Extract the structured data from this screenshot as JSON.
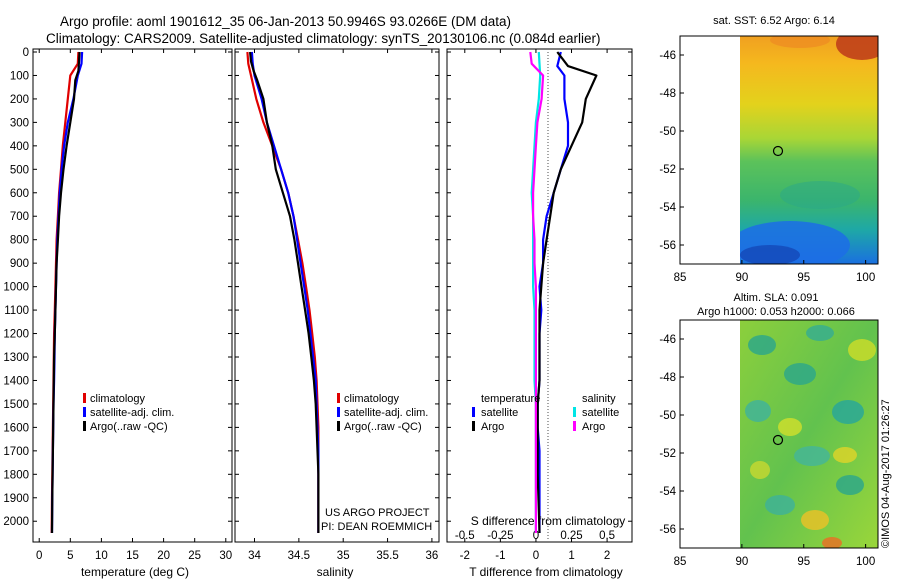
{
  "title": {
    "line1": "Argo profile: aoml 1901612_35 06-Jan-2013 50.9946S 93.0266E (DM data)",
    "line2": "Climatology: CARS2009. Satellite-adjusted climatology: synTS_20130106.nc (0.084d earlier)"
  },
  "colors": {
    "climatology": "#e00000",
    "satellite": "#0000ff",
    "argo": "#000000",
    "satellite_s": "#00e5e5",
    "argo_s": "#ff00ff"
  },
  "chart_data": [
    {
      "type": "line",
      "panel": "temperature",
      "xlabel": "temperature (deg C)",
      "ylabel": "",
      "xlim": [
        -1,
        31
      ],
      "ylim": [
        2080,
        0
      ],
      "xticks": [
        0,
        5,
        10,
        15,
        20,
        25,
        30
      ],
      "yticks": [
        0,
        100,
        200,
        300,
        400,
        500,
        600,
        700,
        800,
        900,
        1000,
        1100,
        1200,
        1300,
        1400,
        1500,
        1600,
        1700,
        1800,
        1900,
        2000
      ],
      "legend": [
        "climatology",
        "satellite-adj. clim.",
        "Argo(..raw -QC)"
      ],
      "legend_position": "lower-center",
      "series": [
        {
          "name": "climatology",
          "color_key": "climatology",
          "x": [
            6.3,
            6.2,
            5.0,
            4.6,
            4.2,
            3.8,
            3.5,
            3.2,
            3.0,
            2.8,
            2.7,
            2.6,
            2.5,
            2.4,
            2.35,
            2.3,
            2.25,
            2.2,
            2.15,
            2.1,
            2.05,
            2.0
          ],
          "y": [
            0,
            50,
            100,
            200,
            300,
            400,
            500,
            600,
            700,
            800,
            900,
            1000,
            1100,
            1200,
            1300,
            1400,
            1500,
            1600,
            1700,
            1800,
            1900,
            2050
          ]
        },
        {
          "name": "satellite-adj. clim.",
          "color_key": "satellite",
          "x": [
            6.9,
            6.8,
            6.2,
            5.5,
            4.6,
            4.0,
            3.6,
            3.3,
            3.1,
            2.9,
            2.8,
            2.7,
            2.6,
            2.5,
            2.45,
            2.4,
            2.3,
            2.25,
            2.2,
            2.15,
            2.1,
            2.05
          ],
          "y": [
            0,
            50,
            100,
            200,
            300,
            400,
            500,
            600,
            700,
            800,
            900,
            1000,
            1100,
            1200,
            1300,
            1400,
            1500,
            1600,
            1700,
            1800,
            1900,
            2050
          ]
        },
        {
          "name": "Argo(..raw -QC)",
          "color_key": "argo",
          "x": [
            6.5,
            6.4,
            6.3,
            5.8,
            5.6,
            5.0,
            4.4,
            3.9,
            3.5,
            3.2,
            3.0,
            2.8,
            2.7,
            2.6,
            2.5,
            2.4,
            2.35,
            2.3,
            2.25,
            2.2,
            2.15,
            2.1,
            2.05
          ],
          "y": [
            0,
            40,
            80,
            120,
            200,
            300,
            400,
            500,
            600,
            700,
            800,
            900,
            1000,
            1100,
            1200,
            1300,
            1400,
            1500,
            1600,
            1700,
            1800,
            1900,
            2050
          ]
        }
      ]
    },
    {
      "type": "line",
      "panel": "salinity",
      "xlabel": "salinity",
      "ylabel": "",
      "xlim": [
        33.78,
        36.08
      ],
      "ylim": [
        2080,
        0
      ],
      "xticks": [
        34,
        34.5,
        35,
        35.5,
        36
      ],
      "legend": [
        "climatology",
        "satellite-adj. clim.",
        "Argo(..raw -QC)"
      ],
      "legend_position": "lower-right",
      "annotation": [
        "US ARGO PROJECT",
        "PI: DEAN ROEMMICH"
      ],
      "series": [
        {
          "name": "climatology",
          "color_key": "climatology",
          "x": [
            33.92,
            33.93,
            33.96,
            34.02,
            34.1,
            34.2,
            34.3,
            34.38,
            34.44,
            34.49,
            34.54,
            34.58,
            34.62,
            34.65,
            34.68,
            34.7,
            34.71,
            34.72,
            34.72,
            34.72,
            34.72,
            34.72
          ],
          "y": [
            0,
            50,
            100,
            200,
            300,
            400,
            500,
            600,
            700,
            800,
            900,
            1000,
            1100,
            1200,
            1300,
            1400,
            1500,
            1600,
            1700,
            1800,
            1900,
            2050
          ]
        },
        {
          "name": "satellite-adj. clim.",
          "color_key": "satellite",
          "x": [
            33.97,
            33.98,
            34.0,
            34.08,
            34.14,
            34.22,
            34.3,
            34.38,
            34.44,
            34.48,
            34.52,
            34.56,
            34.6,
            34.63,
            34.66,
            34.69,
            34.7,
            34.71,
            34.72,
            34.72,
            34.72,
            34.72
          ],
          "y": [
            0,
            50,
            100,
            200,
            300,
            400,
            500,
            600,
            700,
            800,
            900,
            1000,
            1100,
            1200,
            1300,
            1400,
            1500,
            1600,
            1700,
            1800,
            1900,
            2050
          ]
        },
        {
          "name": "Argo(..raw -QC)",
          "color_key": "argo",
          "x": [
            33.95,
            33.96,
            33.99,
            34.03,
            34.1,
            34.14,
            34.2,
            34.24,
            34.32,
            34.4,
            34.45,
            34.49,
            34.53,
            34.57,
            34.61,
            34.64,
            34.67,
            34.69,
            34.7,
            34.71,
            34.72,
            34.72,
            34.72
          ],
          "y": [
            0,
            40,
            80,
            120,
            200,
            300,
            400,
            500,
            600,
            700,
            800,
            900,
            1000,
            1100,
            1200,
            1300,
            1400,
            1500,
            1600,
            1700,
            1800,
            1900,
            2050
          ]
        }
      ]
    },
    {
      "type": "line",
      "panel": "differences",
      "xlabel": "T difference from climatology",
      "xlabel2": "S difference from climatology",
      "xlim": [
        -2.5,
        2.7
      ],
      "x2lim": [
        -0.625,
        0.675
      ],
      "ylim": [
        2080,
        0
      ],
      "xticks": [
        -2,
        -1,
        0,
        1,
        2
      ],
      "x2ticks": [
        "-0.5",
        "-0.25",
        "0",
        "0.25",
        "0.5"
      ],
      "legend_titles": [
        "temperature",
        "salinity"
      ],
      "legend": [
        "satellite",
        "Argo",
        "satellite",
        "Argo"
      ],
      "legend_position": "lower-center",
      "series": [
        {
          "name": "satellite",
          "group": "temperature",
          "color_key": "satellite",
          "x": [
            0.7,
            0.6,
            0.8,
            0.8,
            0.9,
            0.9,
            0.7,
            0.5,
            0.3,
            0.2,
            0.2,
            0.1,
            0.15,
            0.1,
            0.1,
            0.1,
            0.05,
            0.05,
            0.1,
            0.1,
            0.1
          ],
          "y": [
            0,
            60,
            100,
            200,
            300,
            400,
            500,
            600,
            700,
            800,
            900,
            1000,
            1100,
            1200,
            1300,
            1400,
            1500,
            1600,
            1700,
            1800,
            2050
          ]
        },
        {
          "name": "Argo",
          "group": "temperature",
          "color_key": "argo",
          "x": [
            0.6,
            0.9,
            1.7,
            1.4,
            1.3,
            1.0,
            0.7,
            0.5,
            0.4,
            0.3,
            0.2,
            0.15,
            0.1,
            0.1,
            0.1,
            0.1,
            0.05,
            0.05,
            0.05,
            0.05,
            0.1
          ],
          "y": [
            0,
            60,
            100,
            200,
            300,
            400,
            500,
            600,
            700,
            800,
            900,
            1000,
            1100,
            1200,
            1300,
            1400,
            1500,
            1600,
            1700,
            1800,
            2050
          ]
        },
        {
          "name": "satellite",
          "group": "salinity",
          "color_key": "satellite_s",
          "x": [
            0.02,
            0.03,
            0.02,
            0.0,
            -0.01,
            -0.02,
            -0.03,
            -0.02,
            -0.02,
            -0.02,
            -0.02,
            -0.01,
            -0.01,
            -0.01,
            -0.01,
            0.0,
            0.0,
            0.0,
            0.0
          ],
          "y": [
            0,
            100,
            200,
            300,
            400,
            500,
            600,
            700,
            800,
            900,
            1000,
            1100,
            1200,
            1300,
            1400,
            1500,
            1600,
            1700,
            2050
          ]
        },
        {
          "name": "Argo",
          "group": "salinity",
          "color_key": "argo_s",
          "x": [
            -0.04,
            -0.03,
            0.05,
            0.04,
            0.01,
            0.0,
            -0.01,
            -0.02,
            -0.02,
            -0.01,
            -0.01,
            0.0,
            0.0
          ],
          "y": [
            0,
            50,
            100,
            200,
            300,
            400,
            500,
            600,
            700,
            800,
            900,
            1000,
            2050
          ]
        }
      ]
    },
    {
      "type": "heatmap",
      "panel": "sst_map",
      "title": "sat. SST: 6.52  Argo: 6.14",
      "xlim": [
        85,
        101
      ],
      "ylim": [
        -57,
        -45
      ],
      "xticks": [
        85,
        90,
        95,
        100
      ],
      "yticks": [
        -46,
        -48,
        -50,
        -52,
        -54,
        -56
      ],
      "profile_location": [
        93.0266,
        -50.9946
      ]
    },
    {
      "type": "heatmap",
      "panel": "sla_map",
      "title_lines": [
        "Altim. SLA: 0.091",
        "Argo h1000: 0.053 h2000: 0.066"
      ],
      "xlim": [
        85,
        101
      ],
      "ylim": [
        -57,
        -45
      ],
      "xticks": [
        85,
        90,
        95,
        100
      ],
      "yticks": [
        -46,
        -48,
        -50,
        -52,
        -54,
        -56
      ],
      "profile_location": [
        93.0266,
        -50.9946
      ]
    }
  ],
  "watermark": "©IMOS 04-Aug-2017 01:26:27"
}
